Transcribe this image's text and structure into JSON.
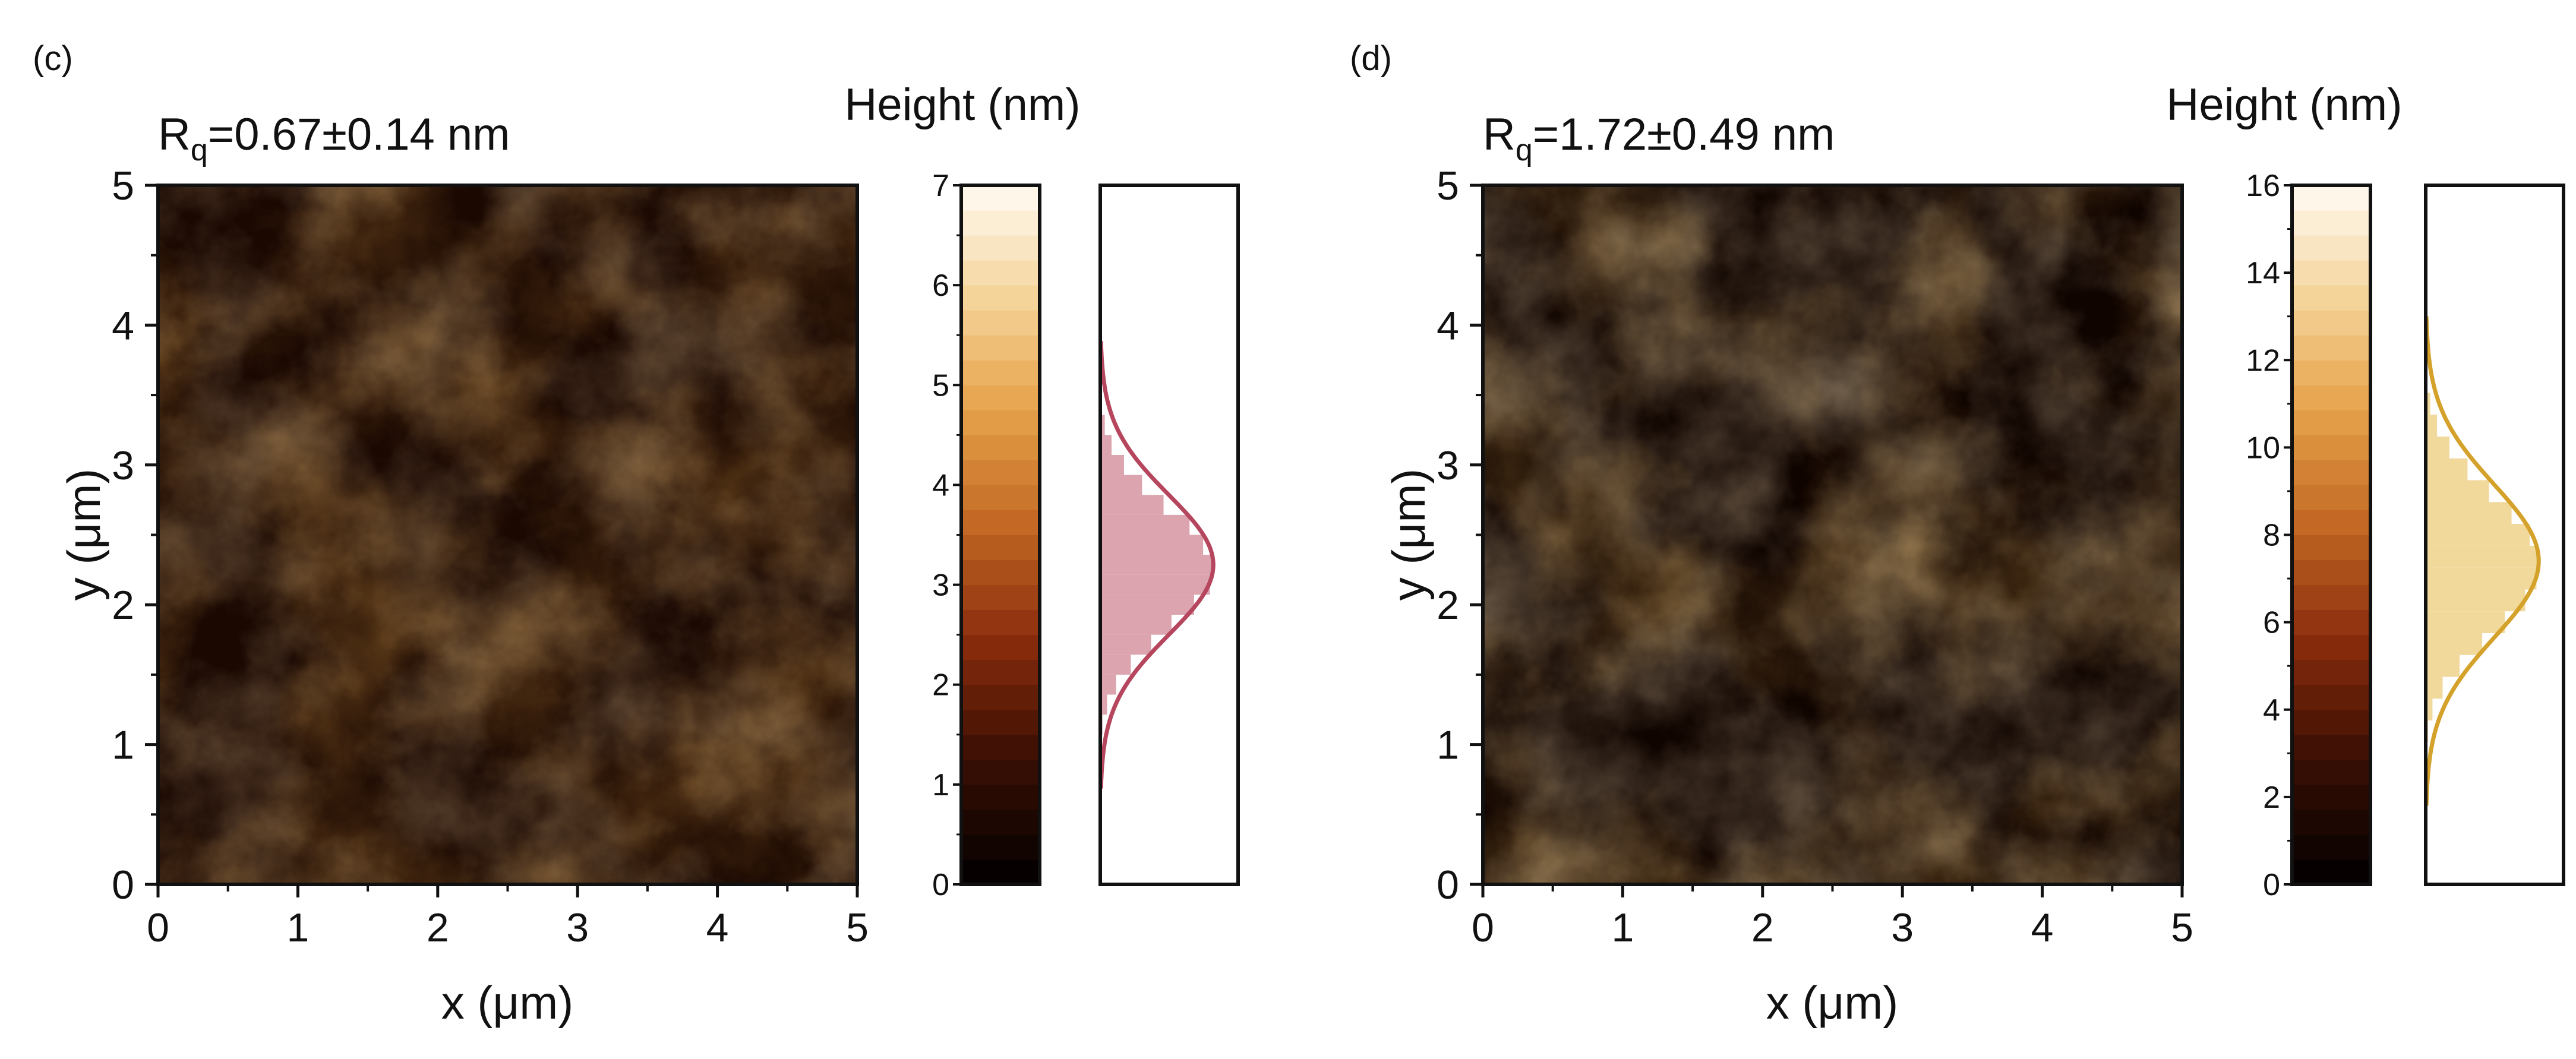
{
  "chart_data": [
    {
      "type": "heatmap",
      "panel_label": "(c)",
      "title_main": "R",
      "title_sub": "q",
      "title_rest": "=0.67±0.14 nm",
      "xlabel": "x (μm)",
      "ylabel": "y (μm)",
      "xlim": [
        0,
        5
      ],
      "ylim": [
        0,
        5
      ],
      "x_ticks": [
        "0",
        "1",
        "2",
        "3",
        "4",
        "5"
      ],
      "y_ticks": [
        "0",
        "1",
        "2",
        "3",
        "4",
        "5"
      ],
      "colorbar": {
        "label": "Height (nm)",
        "range": [
          0,
          7
        ],
        "ticks": [
          "0",
          "1",
          "2",
          "3",
          "4",
          "5",
          "6",
          "7"
        ],
        "tick_values": [
          0,
          1,
          2,
          3,
          4,
          5,
          6,
          7
        ]
      },
      "distribution": {
        "mean": 3.2,
        "sigma": 0.7,
        "color": "#b5465e",
        "fill_color": "#dba4ae",
        "bins": [
          {
            "h": 1.6,
            "count": 0.02
          },
          {
            "h": 1.8,
            "count": 0.06
          },
          {
            "h": 2.0,
            "count": 0.14
          },
          {
            "h": 2.2,
            "count": 0.27
          },
          {
            "h": 2.4,
            "count": 0.45
          },
          {
            "h": 2.6,
            "count": 0.63
          },
          {
            "h": 2.8,
            "count": 0.83
          },
          {
            "h": 3.0,
            "count": 0.97
          },
          {
            "h": 3.2,
            "count": 1.0
          },
          {
            "h": 3.4,
            "count": 0.91
          },
          {
            "h": 3.6,
            "count": 0.79
          },
          {
            "h": 3.8,
            "count": 0.56
          },
          {
            "h": 4.0,
            "count": 0.37
          },
          {
            "h": 4.2,
            "count": 0.21
          },
          {
            "h": 4.4,
            "count": 0.1
          },
          {
            "h": 4.6,
            "count": 0.04
          },
          {
            "h": 4.8,
            "count": 0.01
          }
        ]
      }
    },
    {
      "type": "heatmap",
      "panel_label": "(d)",
      "title_main": "R",
      "title_sub": "q",
      "title_rest": "=1.72±0.49 nm",
      "xlabel": "x (μm)",
      "ylabel": "y (μm)",
      "xlim": [
        0,
        5
      ],
      "ylim": [
        0,
        5
      ],
      "x_ticks": [
        "0",
        "1",
        "2",
        "3",
        "4",
        "5"
      ],
      "y_ticks": [
        "0",
        "1",
        "2",
        "3",
        "4",
        "5"
      ],
      "colorbar": {
        "label": "Height (nm)",
        "range": [
          0,
          16
        ],
        "ticks": [
          "0",
          "2",
          "4",
          "6",
          "8",
          "10",
          "12",
          "14",
          "16"
        ],
        "tick_values": [
          0,
          2,
          4,
          6,
          8,
          10,
          12,
          14,
          16
        ]
      },
      "distribution": {
        "mean": 7.4,
        "sigma": 1.75,
        "color": "#d4a22a",
        "fill_color": "#f1d89b",
        "bins": [
          {
            "h": 3.5,
            "count": 0.02
          },
          {
            "h": 4.0,
            "count": 0.06
          },
          {
            "h": 4.5,
            "count": 0.15
          },
          {
            "h": 5.0,
            "count": 0.3
          },
          {
            "h": 5.5,
            "count": 0.5
          },
          {
            "h": 6.0,
            "count": 0.7
          },
          {
            "h": 6.5,
            "count": 0.88
          },
          {
            "h": 7.0,
            "count": 0.98
          },
          {
            "h": 7.5,
            "count": 1.0
          },
          {
            "h": 8.0,
            "count": 0.92
          },
          {
            "h": 8.5,
            "count": 0.76
          },
          {
            "h": 9.0,
            "count": 0.56
          },
          {
            "h": 9.5,
            "count": 0.37
          },
          {
            "h": 10.0,
            "count": 0.21
          },
          {
            "h": 10.5,
            "count": 0.1
          },
          {
            "h": 11.0,
            "count": 0.04
          }
        ]
      }
    }
  ]
}
